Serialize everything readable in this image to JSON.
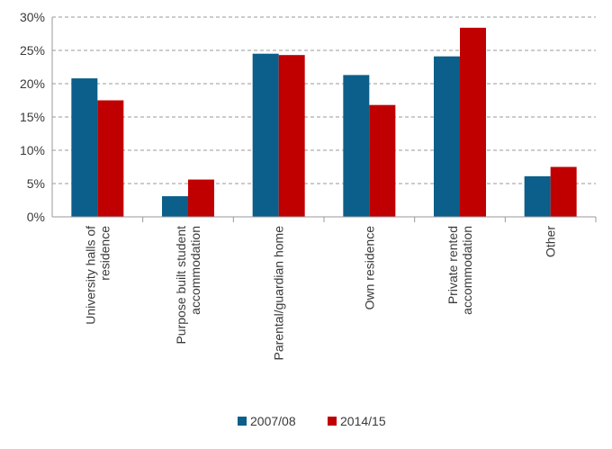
{
  "chart_data": {
    "type": "bar",
    "categories": [
      [
        "University halls of",
        "residence"
      ],
      [
        "Purpose built student",
        "accommodation"
      ],
      [
        "Parental/guardian home"
      ],
      [
        "Own residence"
      ],
      [
        "Private rented",
        "accommodation"
      ],
      [
        "Other"
      ]
    ],
    "series": [
      {
        "name": "2007/08",
        "color": "#0b5f8a",
        "values": [
          20.8,
          3.1,
          24.5,
          21.3,
          24.1,
          6.1
        ]
      },
      {
        "name": "2014/15",
        "color": "#c00000",
        "values": [
          17.5,
          5.6,
          24.3,
          16.8,
          28.4,
          7.5
        ]
      }
    ],
    "y_ticks": [
      "0%",
      "5%",
      "10%",
      "15%",
      "20%",
      "25%",
      "30%"
    ],
    "ylim": [
      0,
      30
    ],
    "y_tick_step": 5,
    "grid": true,
    "legend_position": "bottom-center",
    "title": "",
    "xlabel": "",
    "ylabel": ""
  }
}
